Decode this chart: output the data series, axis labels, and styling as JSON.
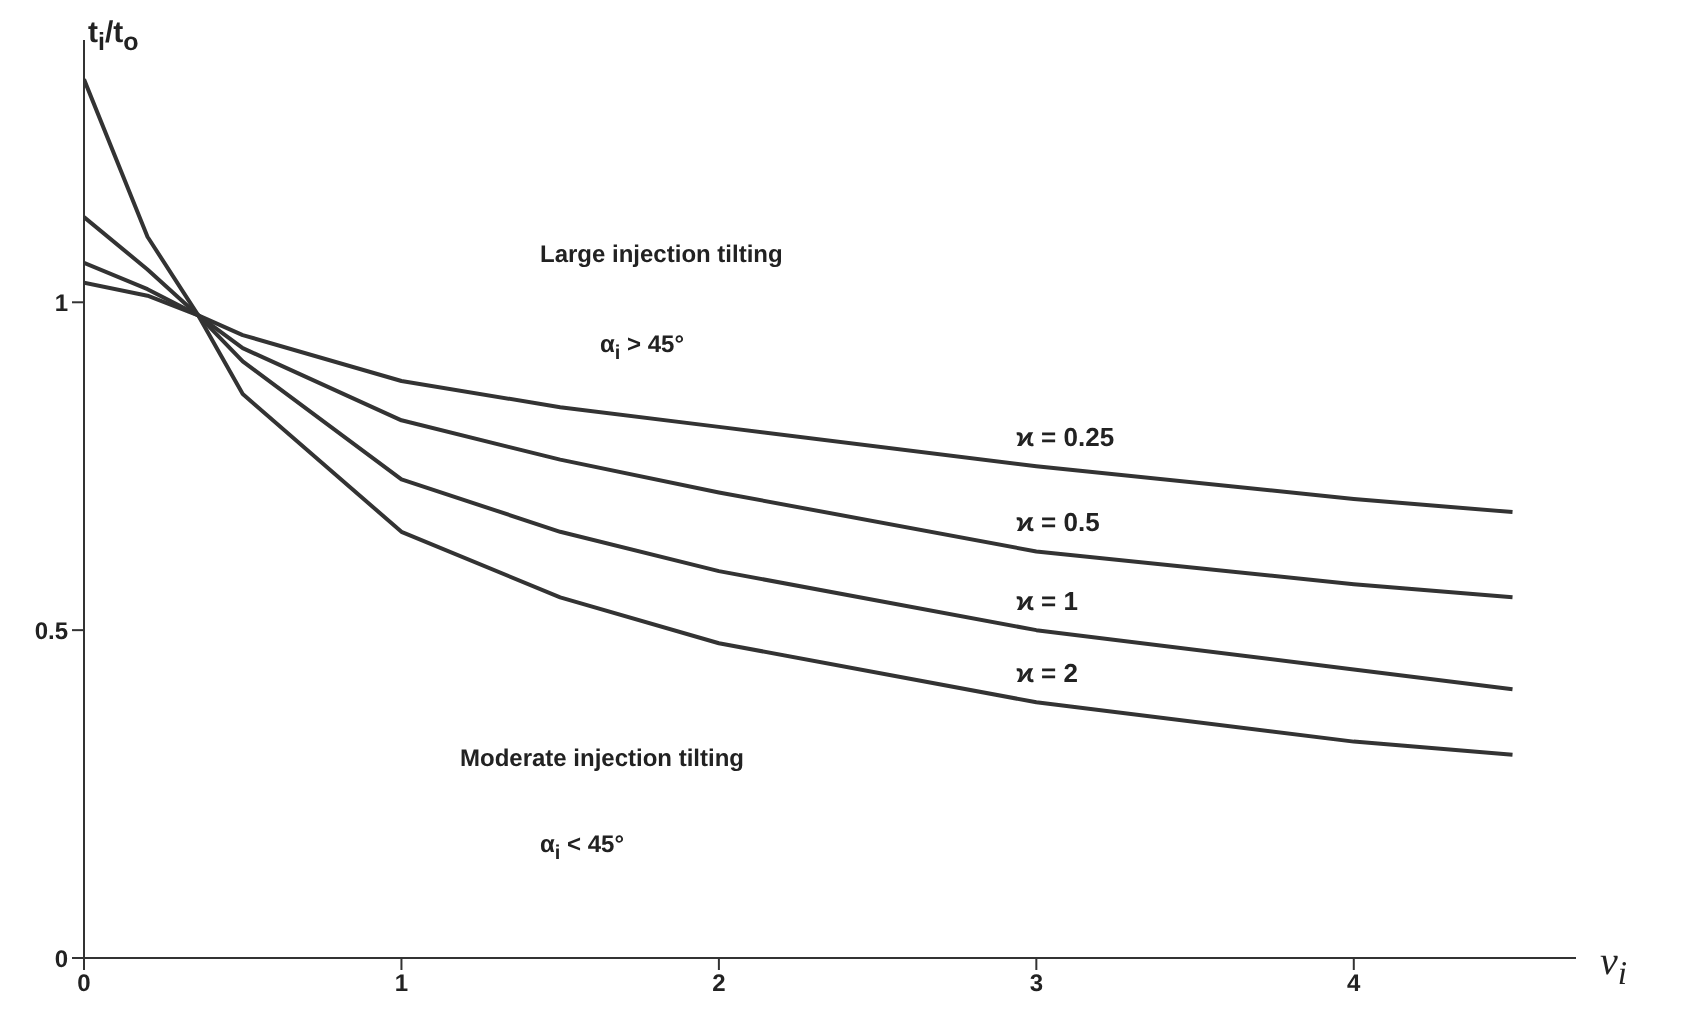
{
  "chart_data": {
    "type": "line",
    "xlabel": "ν$_{i}$",
    "ylabel": "t$_{i}$/t$_{o}$",
    "x": [
      0,
      0.2,
      0.36,
      0.5,
      1,
      1.5,
      2,
      3,
      4,
      4.5
    ],
    "series": [
      {
        "name": "ϰ = 0.25",
        "color": "#333333",
        "values": [
          1.03,
          1.01,
          0.98,
          0.95,
          0.88,
          0.84,
          0.81,
          0.75,
          0.7,
          0.68
        ]
      },
      {
        "name": "ϰ = 0.5",
        "color": "#333333",
        "values": [
          1.06,
          1.02,
          0.98,
          0.93,
          0.82,
          0.76,
          0.71,
          0.62,
          0.57,
          0.55
        ]
      },
      {
        "name": "ϰ = 1",
        "color": "#333333",
        "values": [
          1.13,
          1.05,
          0.98,
          0.91,
          0.73,
          0.65,
          0.59,
          0.5,
          0.44,
          0.41
        ]
      },
      {
        "name": "ϰ = 2",
        "color": "#333333",
        "values": [
          1.34,
          1.1,
          0.98,
          0.86,
          0.65,
          0.55,
          0.48,
          0.39,
          0.33,
          0.31
        ]
      }
    ],
    "xlim": [
      0,
      4.7
    ],
    "ylim": [
      0,
      1.4
    ],
    "xticks": [
      0,
      1,
      2,
      3,
      4
    ],
    "yticks": [
      0,
      0.5,
      1
    ],
    "annotations": [
      "Large injection tilting",
      "α$_{i}$ > 45°",
      "Moderate injection tilting",
      "α$_{i}$ < 45°"
    ],
    "grid": false,
    "legend": false,
    "marker": "none",
    "line_style": "solid"
  }
}
